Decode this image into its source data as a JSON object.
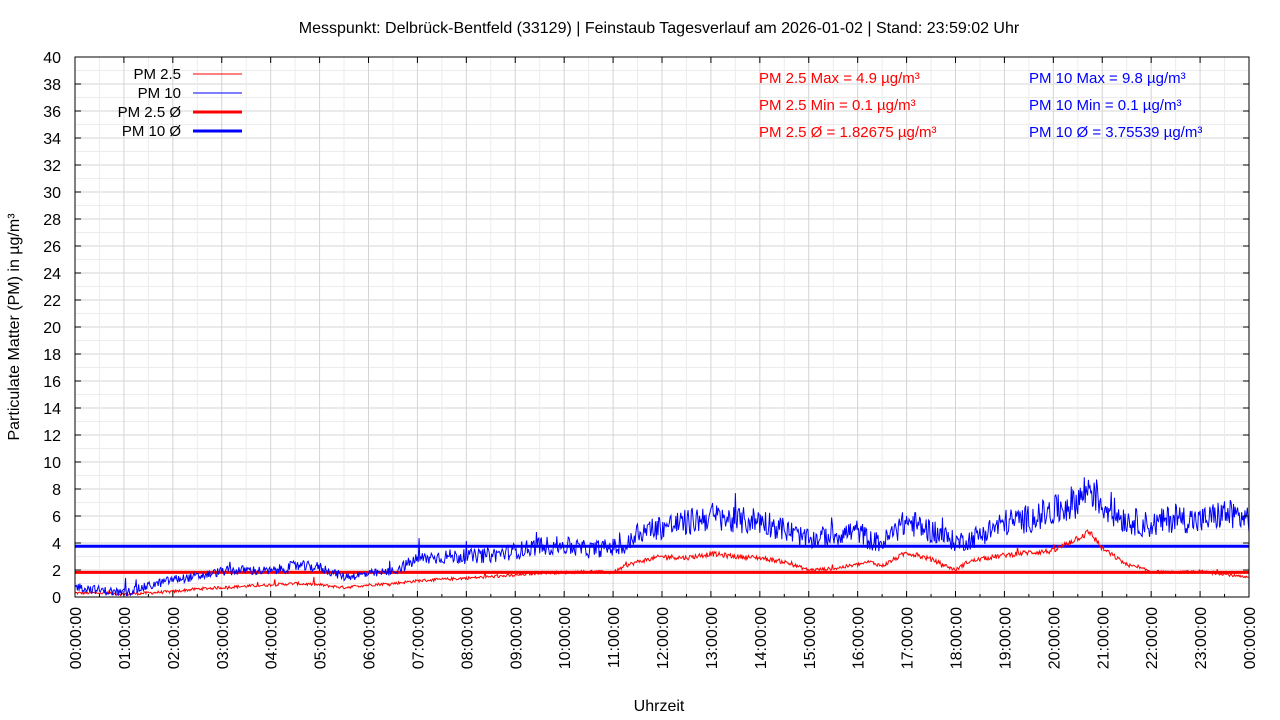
{
  "chart_data": {
    "type": "line",
    "title": "Messpunkt: Delbrück-Bentfeld (33129) | Feinstaub Tagesverlauf am 2026-01-02 | Stand: 23:59:02 Uhr",
    "xlabel": "Uhrzeit",
    "ylabel": "Particulate Matter (PM) in µg/m³",
    "xlim": [
      "00:00:00",
      "00:00:00"
    ],
    "ylim": [
      0,
      40
    ],
    "grid": true,
    "legend_position": "top-left",
    "x_ticks": [
      "00:00:00",
      "01:00:00",
      "02:00:00",
      "03:00:00",
      "04:00:00",
      "05:00:00",
      "06:00:00",
      "07:00:00",
      "08:00:00",
      "09:00:00",
      "10:00:00",
      "11:00:00",
      "12:00:00",
      "13:00:00",
      "14:00:00",
      "15:00:00",
      "16:00:00",
      "17:00:00",
      "18:00:00",
      "19:00:00",
      "20:00:00",
      "21:00:00",
      "22:00:00",
      "23:00:00",
      "00:00:00"
    ],
    "y_ticks": [
      "0",
      "2",
      "4",
      "6",
      "8",
      "10",
      "12",
      "14",
      "16",
      "18",
      "20",
      "22",
      "24",
      "26",
      "28",
      "30",
      "32",
      "34",
      "36",
      "38",
      "40"
    ],
    "series": [
      {
        "name": "PM 2.5",
        "color": "#ff0000",
        "style": "thin",
        "x_hours": [
          0,
          0.5,
          1,
          1.5,
          2,
          2.5,
          3,
          3.5,
          4,
          4.5,
          5,
          5.5,
          6,
          6.5,
          7,
          7.5,
          8,
          8.5,
          9,
          9.5,
          10,
          10.5,
          11,
          11.25,
          11.5,
          12,
          12.5,
          13,
          13.5,
          14,
          14.5,
          15,
          15.5,
          16,
          16.25,
          16.5,
          17,
          17.5,
          18,
          18.25,
          18.5,
          19,
          19.5,
          20,
          20.5,
          20.75,
          21,
          21.5,
          22,
          22.5,
          23,
          23.5,
          24
        ],
        "values": [
          0.3,
          0.3,
          0.2,
          0.3,
          0.4,
          0.6,
          0.7,
          0.8,
          0.9,
          1.0,
          0.9,
          0.7,
          0.9,
          1.0,
          1.2,
          1.3,
          1.4,
          1.5,
          1.6,
          1.8,
          1.8,
          1.9,
          1.8,
          2.3,
          2.6,
          3.0,
          2.9,
          3.2,
          3.0,
          2.9,
          2.6,
          2.0,
          2.1,
          2.4,
          2.6,
          2.3,
          3.3,
          2.8,
          2.0,
          2.6,
          2.8,
          3.1,
          3.3,
          3.4,
          4.4,
          4.8,
          3.6,
          2.4,
          1.9,
          1.8,
          1.9,
          1.7,
          1.4
        ]
      },
      {
        "name": "PM 10",
        "color": "#0000ff",
        "style": "thin",
        "x_hours": [
          0,
          0.5,
          1,
          1.5,
          2,
          2.5,
          3,
          3.5,
          4,
          4.5,
          5,
          5.5,
          6,
          6.5,
          7,
          7.5,
          8,
          8.5,
          9,
          9.5,
          10,
          10.5,
          11,
          11.25,
          11.5,
          12,
          12.5,
          13,
          13.5,
          14,
          14.5,
          15,
          15.5,
          16,
          16.25,
          16.5,
          17,
          17.5,
          18,
          18.25,
          18.5,
          19,
          19.5,
          20,
          20.5,
          20.75,
          21,
          21.5,
          22,
          22.5,
          23,
          23.5,
          24
        ],
        "values": [
          0.8,
          0.5,
          0.3,
          0.8,
          1.3,
          1.5,
          1.9,
          2.0,
          1.9,
          2.3,
          2.2,
          1.5,
          1.7,
          1.9,
          2.8,
          3.0,
          3.0,
          3.1,
          3.4,
          3.8,
          3.8,
          3.5,
          3.7,
          3.6,
          4.8,
          5.2,
          5.5,
          6.0,
          5.6,
          5.7,
          5.0,
          4.2,
          4.6,
          4.9,
          4.2,
          4.0,
          5.6,
          4.9,
          4.1,
          4.2,
          4.6,
          5.5,
          5.8,
          6.3,
          7.2,
          8.2,
          6.8,
          5.7,
          5.3,
          5.9,
          5.6,
          6.2,
          5.8
        ]
      },
      {
        "name": "PM 2.5 Ø",
        "color": "#ff0000",
        "style": "thick",
        "mean": 1.82675
      },
      {
        "name": "PM 10 Ø",
        "color": "#0000ff",
        "style": "thick",
        "mean": 3.75539
      }
    ],
    "annotations": {
      "pm25_max": "PM 2.5 Max = 4.9 µg/m³",
      "pm25_min": "PM 2.5 Min = 0.1 µg/m³",
      "pm25_avg": "PM 2.5 Ø = 1.82675 µg/m³",
      "pm10_max": "PM 10 Max = 9.8 µg/m³",
      "pm10_min": "PM 10 Min = 0.1 µg/m³",
      "pm10_avg": "PM 10 Ø = 3.75539 µg/m³"
    }
  }
}
